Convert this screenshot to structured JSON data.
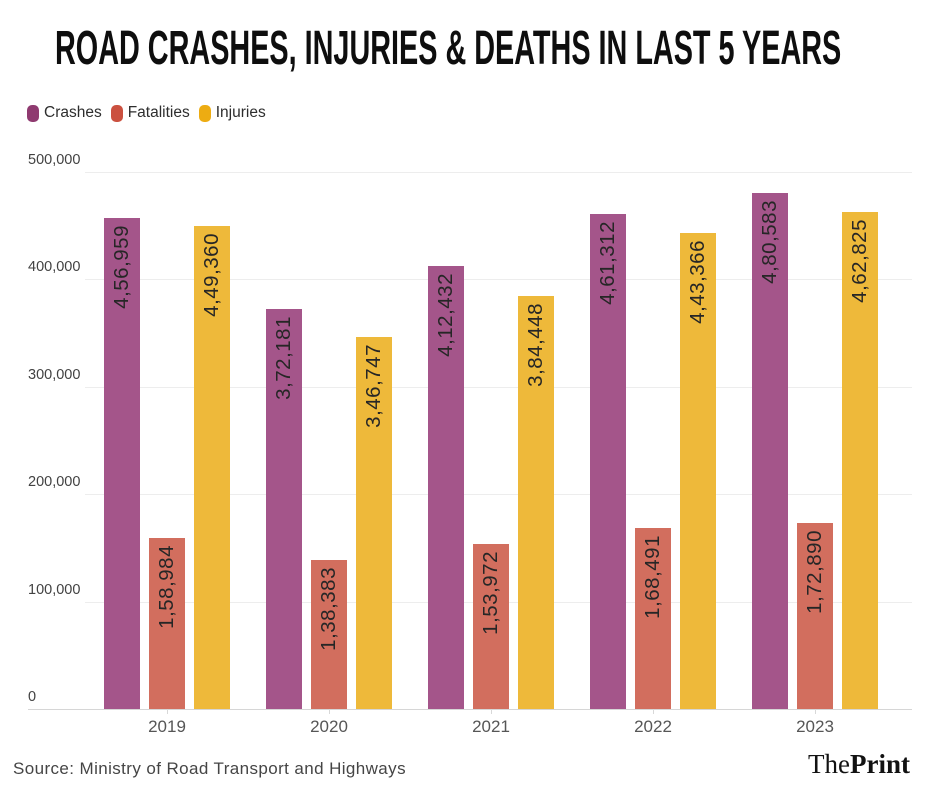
{
  "title": "ROAD CRASHES, INJURIES & DEATHS IN LAST 5 YEARS",
  "legend": [
    {
      "label": "Crashes",
      "color": "#8f3a70"
    },
    {
      "label": "Fatalities",
      "color": "#cb5140"
    },
    {
      "label": "Injuries",
      "color": "#edac12"
    }
  ],
  "chart_data": {
    "type": "bar",
    "title": "ROAD CRASHES, INJURIES & DEATHS IN LAST 5 YEARS",
    "categories": [
      "2019",
      "2020",
      "2021",
      "2022",
      "2023"
    ],
    "series": [
      {
        "name": "Crashes",
        "color": "#a4558a",
        "values": [
          456959,
          372181,
          412432,
          461312,
          480583
        ],
        "labels": [
          "4,56,959",
          "3,72,181",
          "4,12,432",
          "4,61,312",
          "4,80,583"
        ]
      },
      {
        "name": "Fatalities",
        "color": "#d26e5e",
        "values": [
          158984,
          138383,
          153972,
          168491,
          172890
        ],
        "labels": [
          "1,58,984",
          "1,38,383",
          "1,53,972",
          "1,68,491",
          "1,72,890"
        ]
      },
      {
        "name": "Injuries",
        "color": "#eeb93a",
        "values": [
          449360,
          346747,
          384448,
          443366,
          462825
        ],
        "labels": [
          "4,49,360",
          "3,46,747",
          "3,84,448",
          "4,43,366",
          "4,62,825"
        ]
      }
    ],
    "ylim": [
      0,
      500000
    ],
    "yticks": [
      {
        "value": 0,
        "label": "0"
      },
      {
        "value": 100000,
        "label": "100,000"
      },
      {
        "value": 200000,
        "label": "200,000"
      },
      {
        "value": 300000,
        "label": "300,000"
      },
      {
        "value": 400000,
        "label": "400,000"
      },
      {
        "value": 500000,
        "label": "500,000"
      }
    ],
    "grid": "horizontal",
    "legend_position": "top-left",
    "value_label_rotation": -90
  },
  "footer": {
    "source": "Source: Ministry of Road Transport and Highways",
    "logo_the": "The",
    "logo_print": "Print"
  }
}
